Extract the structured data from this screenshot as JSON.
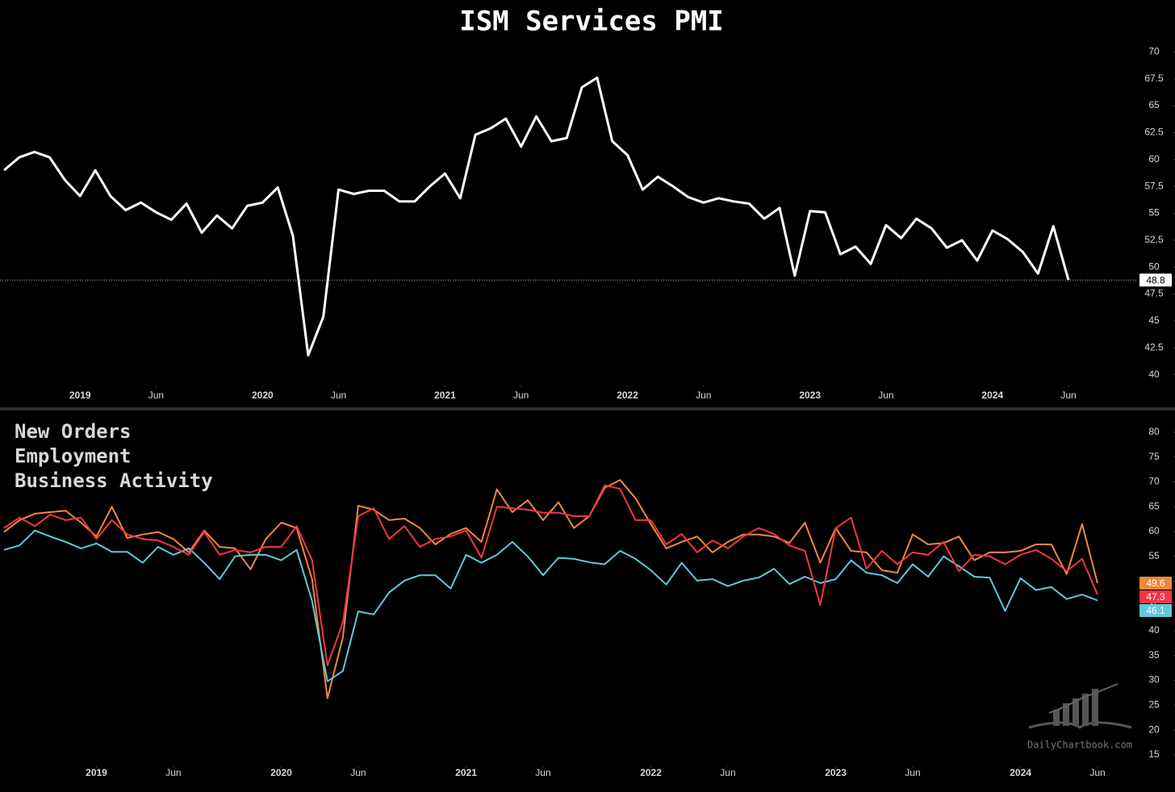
{
  "chart_data": [
    {
      "type": "line",
      "title": "ISM Services PMI",
      "color": "#ffffff",
      "last_value_line": true,
      "x": [
        "2018-08",
        "2018-09",
        "2018-10",
        "2018-11",
        "2018-12",
        "2019-01",
        "2019-02",
        "2019-03",
        "2019-04",
        "2019-05",
        "2019-06",
        "2019-07",
        "2019-08",
        "2019-09",
        "2019-10",
        "2019-11",
        "2019-12",
        "2020-01",
        "2020-02",
        "2020-03",
        "2020-04",
        "2020-05",
        "2020-06",
        "2020-07",
        "2020-08",
        "2020-09",
        "2020-10",
        "2020-11",
        "2020-12",
        "2021-01",
        "2021-02",
        "2021-03",
        "2021-04",
        "2021-05",
        "2021-06",
        "2021-07",
        "2021-08",
        "2021-09",
        "2021-10",
        "2021-11",
        "2021-12",
        "2022-01",
        "2022-02",
        "2022-03",
        "2022-04",
        "2022-05",
        "2022-06",
        "2022-07",
        "2022-08",
        "2022-09",
        "2022-10",
        "2022-11",
        "2022-12",
        "2023-01",
        "2023-02",
        "2023-03",
        "2023-04",
        "2023-05",
        "2023-06",
        "2023-07",
        "2023-08",
        "2023-09",
        "2023-10",
        "2023-11",
        "2023-12",
        "2024-01",
        "2024-02",
        "2024-03",
        "2024-04",
        "2024-05",
        "2024-06"
      ],
      "values": [
        59.0,
        60.2,
        60.7,
        60.2,
        58.1,
        56.6,
        59.0,
        56.6,
        55.3,
        56.0,
        55.1,
        54.4,
        55.9,
        53.2,
        54.8,
        53.6,
        55.7,
        56.0,
        57.4,
        52.9,
        41.8,
        45.4,
        57.2,
        56.8,
        57.1,
        57.1,
        56.1,
        56.1,
        57.5,
        58.7,
        56.4,
        62.3,
        62.9,
        63.8,
        61.2,
        64.0,
        61.7,
        62.0,
        66.7,
        67.6,
        61.7,
        60.4,
        57.2,
        58.4,
        57.5,
        56.5,
        56.0,
        56.4,
        56.1,
        55.9,
        54.5,
        55.5,
        49.2,
        55.2,
        55.1,
        51.2,
        51.9,
        50.3,
        53.9,
        52.7,
        54.5,
        53.6,
        51.8,
        52.5,
        50.6,
        53.4,
        52.6,
        51.4,
        49.4,
        53.8,
        48.8
      ],
      "ylim": [
        39.0,
        70.7
      ],
      "yticks": [
        40,
        42.5,
        45,
        47.5,
        50,
        52.5,
        55,
        57.5,
        60,
        62.5,
        65,
        67.5,
        70
      ],
      "xticks": [
        {
          "value": "2019-01",
          "label": "2019"
        },
        {
          "value": "2019-06",
          "label": "Jun"
        },
        {
          "value": "2020-01",
          "label": "2020"
        },
        {
          "value": "2020-06",
          "label": "Jun"
        },
        {
          "value": "2021-01",
          "label": "2021"
        },
        {
          "value": "2021-06",
          "label": "Jun"
        },
        {
          "value": "2022-01",
          "label": "2022"
        },
        {
          "value": "2022-06",
          "label": "Jun"
        },
        {
          "value": "2023-01",
          "label": "2023"
        },
        {
          "value": "2023-06",
          "label": "Jun"
        },
        {
          "value": "2024-01",
          "label": "2024"
        },
        {
          "value": "2024-06",
          "label": "Jun"
        }
      ]
    },
    {
      "type": "line",
      "x": [
        "2018-07",
        "2018-08",
        "2018-09",
        "2018-10",
        "2018-11",
        "2018-12",
        "2019-01",
        "2019-02",
        "2019-03",
        "2019-04",
        "2019-05",
        "2019-06",
        "2019-07",
        "2019-08",
        "2019-09",
        "2019-10",
        "2019-11",
        "2019-12",
        "2020-01",
        "2020-02",
        "2020-03",
        "2020-04",
        "2020-05",
        "2020-06",
        "2020-07",
        "2020-08",
        "2020-09",
        "2020-10",
        "2020-11",
        "2020-12",
        "2021-01",
        "2021-02",
        "2021-03",
        "2021-04",
        "2021-05",
        "2021-06",
        "2021-07",
        "2021-08",
        "2021-09",
        "2021-10",
        "2021-11",
        "2021-12",
        "2022-01",
        "2022-02",
        "2022-03",
        "2022-04",
        "2022-05",
        "2022-06",
        "2022-07",
        "2022-08",
        "2022-09",
        "2022-10",
        "2022-11",
        "2022-12",
        "2023-01",
        "2023-02",
        "2023-03",
        "2023-04",
        "2023-05",
        "2023-06",
        "2023-07",
        "2023-08",
        "2023-09",
        "2023-10",
        "2023-11",
        "2023-12",
        "2024-01",
        "2024-02",
        "2024-03",
        "2024-04",
        "2024-05",
        "2024-06"
      ],
      "series": [
        {
          "name": "New Orders",
          "color": "#f23645",
          "values": [
            60.7,
            62.8,
            61.1,
            63.4,
            62.3,
            62.8,
            58.5,
            62.3,
            59.4,
            58.5,
            58.2,
            56.9,
            55.3,
            59.9,
            55.3,
            56.3,
            55.8,
            56.9,
            56.9,
            61.1,
            54.2,
            33.0,
            41.7,
            63.1,
            64.7,
            58.5,
            61.1,
            56.9,
            58.5,
            59.0,
            60.2,
            54.7,
            65.0,
            64.7,
            64.4,
            63.8,
            63.8,
            63.1,
            63.1,
            69.3,
            68.6,
            62.3,
            62.3,
            57.4,
            59.5,
            55.8,
            58.2,
            56.6,
            59.0,
            60.7,
            59.5,
            57.2,
            56.1,
            45.2,
            60.7,
            62.8,
            52.5,
            56.1,
            53.4,
            55.8,
            55.3,
            57.9,
            52.0,
            55.3,
            55.0,
            53.4,
            55.3,
            56.3,
            54.5,
            52.0,
            54.5,
            47.3
          ]
        },
        {
          "name": "Employment",
          "color": "#5fc9dc",
          "values": [
            56.3,
            57.2,
            60.2,
            59.0,
            57.9,
            56.6,
            57.6,
            55.9,
            55.9,
            53.7,
            56.9,
            55.3,
            56.6,
            53.7,
            50.4,
            55.0,
            55.3,
            55.3,
            54.2,
            56.3,
            46.0,
            29.8,
            31.9,
            43.9,
            43.3,
            47.7,
            50.1,
            51.2,
            51.2,
            48.5,
            55.3,
            53.7,
            55.3,
            57.9,
            55.0,
            51.2,
            54.7,
            54.5,
            53.8,
            53.4,
            56.1,
            54.5,
            52.2,
            49.3,
            53.7,
            50.1,
            50.4,
            49.0,
            50.1,
            50.7,
            52.5,
            49.4,
            50.9,
            49.6,
            50.4,
            54.2,
            51.7,
            51.2,
            49.6,
            53.4,
            50.9,
            55.0,
            53.0,
            50.9,
            50.7,
            44.0,
            50.6,
            48.2,
            48.8,
            46.4,
            47.3,
            46.1
          ]
        },
        {
          "name": "Business Activity",
          "color": "#f0883e",
          "values": [
            59.9,
            62.3,
            63.6,
            63.9,
            64.2,
            61.8,
            59.0,
            65.0,
            58.7,
            59.4,
            59.9,
            58.5,
            55.8,
            60.2,
            56.9,
            56.6,
            52.4,
            58.5,
            61.8,
            60.7,
            50.4,
            26.4,
            38.7,
            65.2,
            64.4,
            62.3,
            62.6,
            60.7,
            57.4,
            59.5,
            60.7,
            57.9,
            68.5,
            63.9,
            66.3,
            62.3,
            65.9,
            60.7,
            63.1,
            68.8,
            70.4,
            66.7,
            61.5,
            56.6,
            57.9,
            59.0,
            55.8,
            57.9,
            59.4,
            59.4,
            59.0,
            57.7,
            61.8,
            53.7,
            60.7,
            56.1,
            55.8,
            52.2,
            51.7,
            59.4,
            57.4,
            57.7,
            59.0,
            54.2,
            55.8,
            55.8,
            56.1,
            57.4,
            57.4,
            51.4,
            61.5,
            49.6
          ]
        }
      ],
      "ylim": [
        12.7,
        82.6
      ],
      "yticks": [
        15,
        20,
        25,
        30,
        35,
        40,
        45,
        50,
        55,
        60,
        65,
        70,
        75,
        80
      ],
      "xticks": [
        {
          "value": "2019-01",
          "label": "2019"
        },
        {
          "value": "2019-06",
          "label": "Jun"
        },
        {
          "value": "2020-01",
          "label": "2020"
        },
        {
          "value": "2020-06",
          "label": "Jun"
        },
        {
          "value": "2021-01",
          "label": "2021"
        },
        {
          "value": "2021-06",
          "label": "Jun"
        },
        {
          "value": "2022-01",
          "label": "2022"
        },
        {
          "value": "2022-06",
          "label": "Jun"
        },
        {
          "value": "2023-01",
          "label": "2023"
        },
        {
          "value": "2023-06",
          "label": "Jun"
        },
        {
          "value": "2024-01",
          "label": "2024"
        },
        {
          "value": "2024-06",
          "label": "Jun"
        }
      ]
    }
  ],
  "watermark": "DailyChartbook.com"
}
